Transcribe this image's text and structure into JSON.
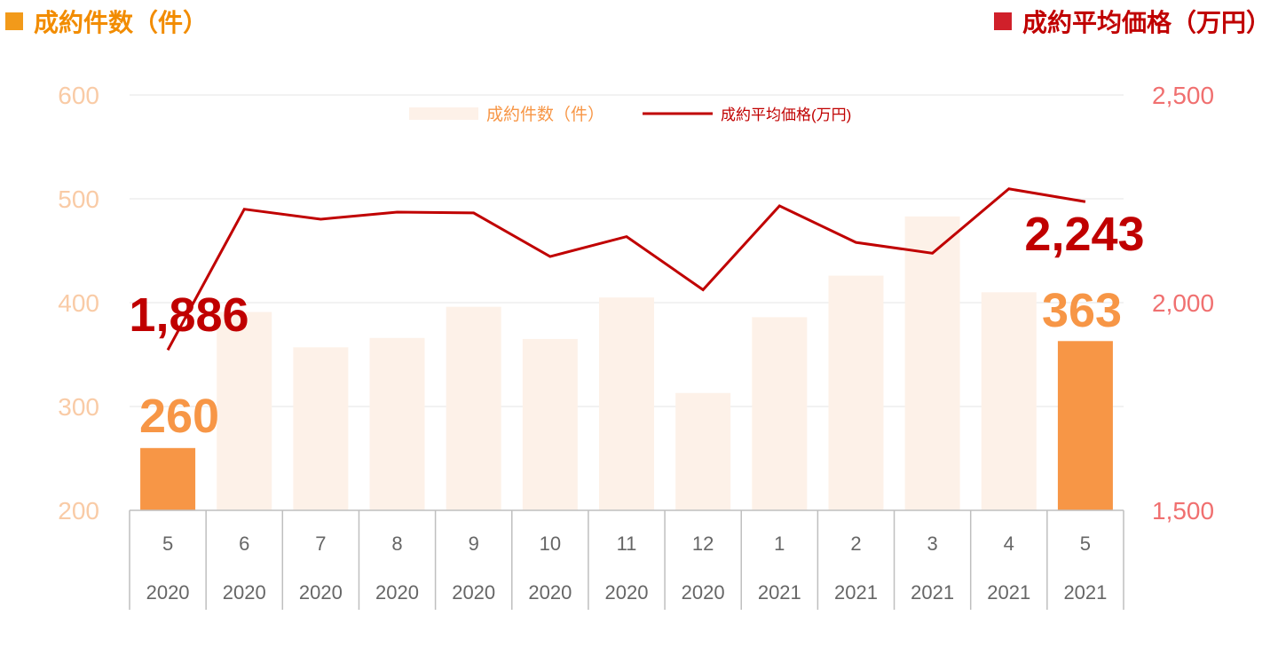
{
  "headers": {
    "left": "成約件数（件）",
    "right": "成約平均価格（万円）"
  },
  "colors": {
    "bar_light": "#fdf1e8",
    "bar_highlight": "#f79646",
    "line": "#c00000",
    "left_axis_text": "#f9cba6",
    "right_axis_text": "#f07070",
    "label_left_value": "#f79646",
    "label_right_value": "#c00000",
    "grid": "#e6e6e6",
    "category_text": "#666666"
  },
  "chart_data": {
    "type": "bar+line",
    "categories": [
      {
        "month": "5",
        "year": "2020"
      },
      {
        "month": "6",
        "year": "2020"
      },
      {
        "month": "7",
        "year": "2020"
      },
      {
        "month": "8",
        "year": "2020"
      },
      {
        "month": "9",
        "year": "2020"
      },
      {
        "month": "10",
        "year": "2020"
      },
      {
        "month": "11",
        "year": "2020"
      },
      {
        "month": "12",
        "year": "2020"
      },
      {
        "month": "1",
        "year": "2021"
      },
      {
        "month": "2",
        "year": "2021"
      },
      {
        "month": "3",
        "year": "2021"
      },
      {
        "month": "4",
        "year": "2021"
      },
      {
        "month": "5",
        "year": "2021"
      }
    ],
    "series": [
      {
        "name": "成約件数（件）",
        "type": "bar",
        "axis": "left",
        "values": [
          260,
          391,
          357,
          366,
          396,
          365,
          405,
          313,
          386,
          426,
          483,
          410,
          363
        ],
        "highlight": [
          true,
          false,
          false,
          false,
          false,
          false,
          false,
          false,
          false,
          false,
          false,
          false,
          true
        ]
      },
      {
        "name": "成約平均価格(万円)",
        "type": "line",
        "axis": "right",
        "values": [
          1886,
          2225,
          2201,
          2218,
          2216,
          2111,
          2159,
          2031,
          2233,
          2145,
          2119,
          2274,
          2243
        ]
      }
    ],
    "left_axis": {
      "ylim": [
        200,
        600
      ],
      "ticks": [
        "200",
        "300",
        "400",
        "500",
        "600"
      ]
    },
    "right_axis": {
      "ylim": [
        1500,
        2500
      ],
      "ticks": [
        "1,500",
        "2,000",
        "2,500"
      ]
    },
    "data_labels": {
      "first_bar": "260",
      "last_bar": "363",
      "first_line": "1,886",
      "last_line": "2,243"
    },
    "legend": {
      "position": "top-center"
    },
    "grid": true
  }
}
